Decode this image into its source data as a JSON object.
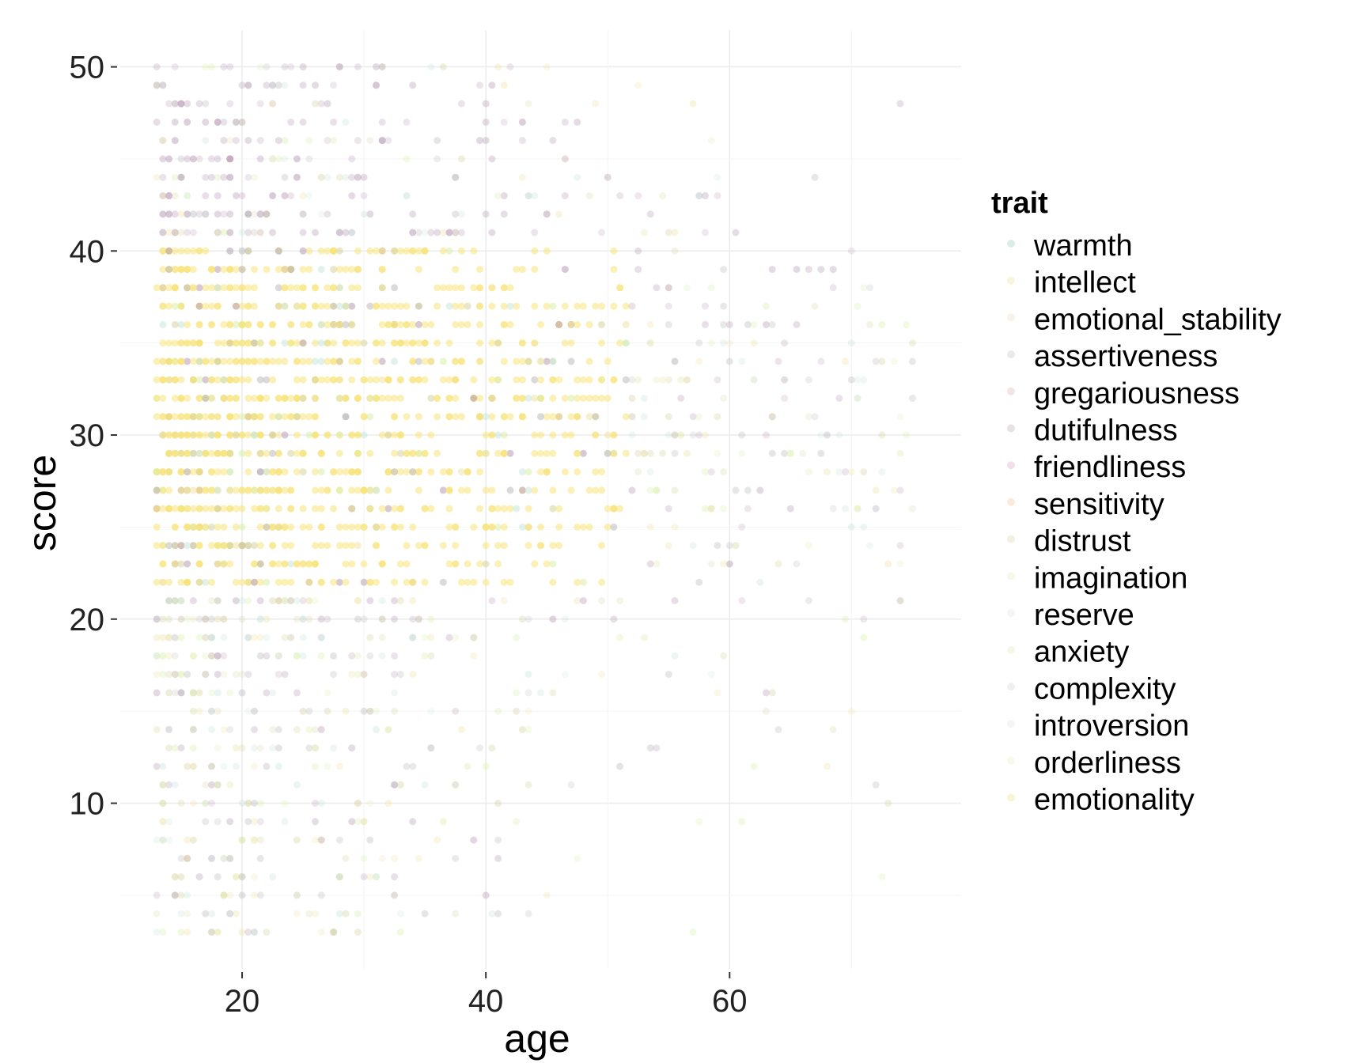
{
  "chart_data": {
    "type": "scatter",
    "title": "",
    "xlabel": "age",
    "ylabel": "score",
    "xlim": [
      10,
      79
    ],
    "ylim": [
      1,
      52
    ],
    "xticks": [
      20,
      40,
      60
    ],
    "yticks": [
      10,
      20,
      30,
      40,
      50
    ],
    "x_range_of_points": [
      13,
      75
    ],
    "y_range_of_points": [
      3,
      50
    ],
    "score_step": 1,
    "grid": true,
    "background": "#ffffff",
    "grid_color": "#ebebeb",
    "point_alpha": 0.25,
    "legend": {
      "title": "trait",
      "position": "right",
      "entries": [
        {
          "name": "warmth",
          "color": "#bfe3d9"
        },
        {
          "name": "intellect",
          "color": "#f6eec2"
        },
        {
          "name": "emotional_stability",
          "color": "#f3e9d8"
        },
        {
          "name": "assertiveness",
          "color": "#dcdcdc"
        },
        {
          "name": "gregariousness",
          "color": "#ecd3d3"
        },
        {
          "name": "dutifulness",
          "color": "#d9cfd9"
        },
        {
          "name": "friendliness",
          "color": "#e6cbe0"
        },
        {
          "name": "sensitivity",
          "color": "#f6dcc0"
        },
        {
          "name": "distrust",
          "color": "#e8e6cf"
        },
        {
          "name": "imagination",
          "color": "#eef3dc"
        },
        {
          "name": "reserve",
          "color": "#f0ecef"
        },
        {
          "name": "anxiety",
          "color": "#f2f0dc"
        },
        {
          "name": "complexity",
          "color": "#e6e6ea"
        },
        {
          "name": "introversion",
          "color": "#eeeef0"
        },
        {
          "name": "orderliness",
          "color": "#f7f3dd"
        },
        {
          "name": "emotionality",
          "color": "#f5efb8"
        }
      ]
    },
    "series_colors_in_plot": [
      "#f7e47a",
      "#d8efaa",
      "#b89cb6",
      "#bbbbbb",
      "#d6d3a0",
      "#c9e6dd",
      "#efe3a8"
    ]
  }
}
